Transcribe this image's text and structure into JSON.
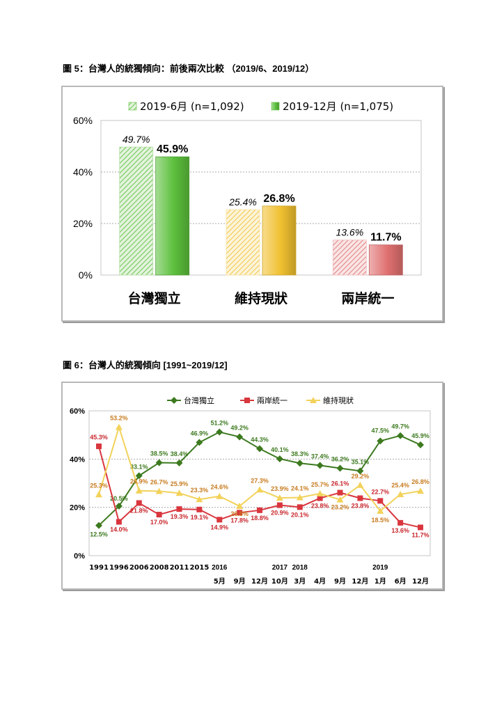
{
  "figure5": {
    "caption": "圖 5：台灣人的統獨傾向：前後兩次比較 （2019/6、2019/12）",
    "chart_data": {
      "type": "bar",
      "categories": [
        "台灣獨立",
        "維持現狀",
        "兩岸統一"
      ],
      "series": [
        {
          "name": "2019-6月 (n=1,092)",
          "values": [
            49.7,
            25.4,
            13.6
          ],
          "labels": [
            "49.7%",
            "25.4%",
            "13.6%"
          ],
          "style": "hatched"
        },
        {
          "name": "2019-12月 (n=1,075)",
          "values": [
            45.9,
            26.8,
            11.7
          ],
          "labels": [
            "45.9%",
            "26.8%",
            "11.7%"
          ],
          "style": "solid"
        }
      ],
      "category_colors": [
        "#5cbf3c",
        "#f0c030",
        "#e07070"
      ],
      "y_ticks": [
        "0%",
        "20%",
        "40%",
        "60%"
      ],
      "ylim": [
        0,
        60
      ],
      "grid": true,
      "legend": "top"
    }
  },
  "figure6": {
    "caption": "圖 6：台灣人的統獨傾向 [1991~2019/12]",
    "chart_data": {
      "type": "line",
      "x_labels": [
        "1991",
        "1996",
        "2006",
        "2008",
        "2011",
        "2015",
        "5月",
        "9月",
        "12月",
        "10月",
        "3月",
        "4月",
        "9月",
        "12月",
        "1月",
        "6月",
        "12月"
      ],
      "year_labels": [
        {
          "text": "2016",
          "index": 6
        },
        {
          "text": "2017",
          "index": 9
        },
        {
          "text": "2018",
          "index": 10
        },
        {
          "text": "2019",
          "index": 14
        }
      ],
      "y_ticks": [
        "0%",
        "20%",
        "40%",
        "60%"
      ],
      "ylim": [
        0,
        60
      ],
      "grid": true,
      "legend": "top",
      "series": [
        {
          "name": "台灣獨立",
          "color": "#3d7a1f",
          "label_color": "#3d7a1f",
          "marker": "diamond",
          "values": [
            12.5,
            20.5,
            33.1,
            38.5,
            38.4,
            46.9,
            51.2,
            49.2,
            44.3,
            40.1,
            38.3,
            37.4,
            36.2,
            35.1,
            47.5,
            49.7,
            45.9
          ],
          "labels": [
            "12.5%",
            "20.5%",
            "33.1%",
            "38.5%",
            "38.4%",
            "46.9%",
            "51.2%",
            "49.2%",
            "44.3%",
            "40.1%",
            "38.3%",
            "37.4%",
            "36.2%",
            "35.1%",
            "47.5%",
            "49.7%",
            "45.9%"
          ]
        },
        {
          "name": "兩岸統一",
          "color": "#d9363e",
          "label_color": "#c8262c",
          "marker": "square",
          "values": [
            45.3,
            14.0,
            21.8,
            17.0,
            19.3,
            19.1,
            14.9,
            17.8,
            18.8,
            20.9,
            20.1,
            23.8,
            26.1,
            23.8,
            22.7,
            13.6,
            11.7
          ],
          "labels": [
            "45.3%",
            "14.0%",
            "21.8%",
            "17.0%",
            "19.3%",
            "19.1%",
            "14.9%",
            "17.8%",
            "18.8%",
            "20.9%",
            "20.1%",
            "23.8%",
            "26.1%",
            "23.8%",
            "22.7%",
            "13.6%",
            "11.7%"
          ]
        },
        {
          "name": "維持現狀",
          "color": "#f2d25a",
          "label_color": "#c87b1e",
          "marker": "triangle",
          "values": [
            25.3,
            53.2,
            26.9,
            26.7,
            25.9,
            23.3,
            24.6,
            20.5,
            27.3,
            23.9,
            24.1,
            25.7,
            23.2,
            29.2,
            18.5,
            25.4,
            26.8
          ],
          "labels": [
            "25.3%",
            "53.2%",
            "26.9%",
            "26.7%",
            "25.9%",
            "23.3%",
            "24.6%",
            "20.5%",
            "27.3%",
            "23.9%",
            "24.1%",
            "25.7%",
            "23.2%",
            "29.2%",
            "18.5%",
            "25.4%",
            "26.8%"
          ]
        }
      ]
    }
  }
}
